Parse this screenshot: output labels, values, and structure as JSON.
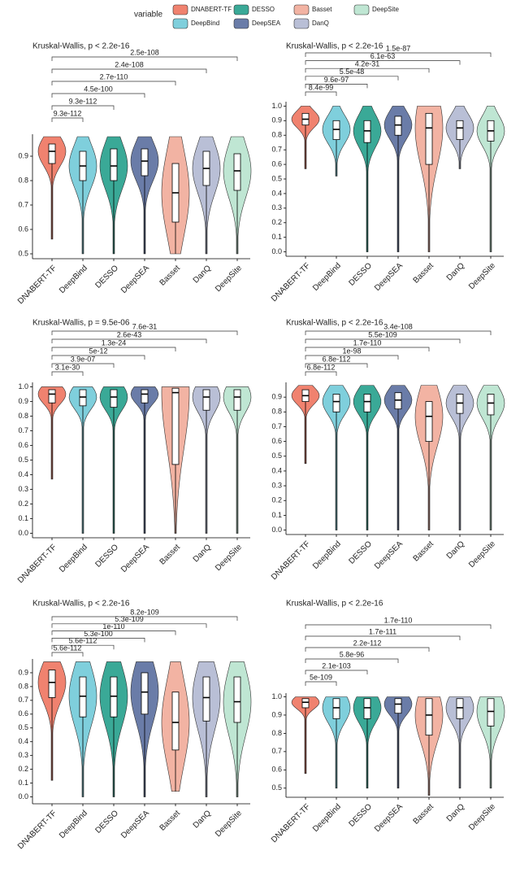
{
  "legend": {
    "title": "variable",
    "entries": [
      {
        "name": "DNABERT-TF",
        "color": "#f0826f"
      },
      {
        "name": "DeepBind",
        "color": "#7fcfdc"
      },
      {
        "name": "DESSO",
        "color": "#3aa997"
      },
      {
        "name": "DeepSEA",
        "color": "#6a7ca8"
      },
      {
        "name": "Basset",
        "color": "#f2b3a3"
      },
      {
        "name": "DanQ",
        "color": "#b9bfd6"
      },
      {
        "name": "DeepSite",
        "color": "#bfe6d3"
      }
    ]
  },
  "chart_data": [
    {
      "type": "violin",
      "title": "Kruskal-Wallis, p < 2.2e-16",
      "categories": [
        "DNABERT-TF",
        "DeepBind",
        "DESSO",
        "DeepSEA",
        "Basset",
        "DanQ",
        "DeepSite"
      ],
      "stats": {
        "min": [
          0.56,
          0.5,
          0.5,
          0.5,
          0.5,
          0.5,
          0.5
        ],
        "q1": [
          0.87,
          0.8,
          0.8,
          0.82,
          0.63,
          0.78,
          0.76
        ],
        "median": [
          0.92,
          0.86,
          0.86,
          0.88,
          0.75,
          0.85,
          0.84
        ],
        "q3": [
          0.95,
          0.92,
          0.93,
          0.93,
          0.87,
          0.92,
          0.91
        ],
        "max": [
          0.98,
          0.98,
          0.98,
          0.98,
          0.98,
          0.98,
          0.98
        ]
      },
      "p_values": [
        "9.3e-112",
        "9.3e-112",
        "4.5e-100",
        "2.7e-110",
        "2.4e-108",
        "2.5e-108"
      ],
      "ylim": [
        0.48,
        0.99
      ],
      "yticks": [
        0.5,
        0.6,
        0.7,
        0.8,
        0.9
      ]
    },
    {
      "type": "violin",
      "title": "Kruskal-Wallis, p < 2.2e-16",
      "categories": [
        "DNABERT-TF",
        "DeepBind",
        "DESSO",
        "DeepSEA",
        "Basset",
        "DanQ",
        "DeepSite"
      ],
      "stats": {
        "min": [
          0.57,
          0.52,
          0,
          0,
          0,
          0.57,
          0
        ],
        "q1": [
          0.87,
          0.77,
          0.75,
          0.8,
          0.6,
          0.77,
          0.76
        ],
        "median": [
          0.91,
          0.84,
          0.83,
          0.87,
          0.85,
          0.85,
          0.83
        ],
        "q3": [
          0.95,
          0.9,
          0.9,
          0.93,
          0.95,
          0.9,
          0.9
        ],
        "max": [
          1,
          1,
          1,
          1,
          1,
          1,
          1
        ]
      },
      "p_values": [
        "8.4e-99",
        "9.6e-97",
        "5.5e-48",
        "4.2e-31",
        "6.1e-63",
        "1.5e-87"
      ],
      "ylim": [
        -0.03,
        1.03
      ],
      "yticks": [
        {
          "value": 0,
          "label": "0.0"
        },
        0.1,
        0.2,
        0.3,
        0.4,
        0.5,
        0.6,
        0.7,
        0.8,
        0.9,
        {
          "value": 1,
          "label": "1.0"
        }
      ]
    },
    {
      "type": "violin",
      "title": "Kruskal-Wallis, p = 9.5e-06",
      "categories": [
        "DNABERT-TF",
        "DeepBind",
        "DESSO",
        "DeepSEA",
        "Basset",
        "DanQ",
        "DeepSite"
      ],
      "stats": {
        "min": [
          0.37,
          0,
          0,
          0,
          0,
          0,
          0
        ],
        "q1": [
          0.89,
          0.87,
          0.86,
          0.89,
          0.47,
          0.84,
          0.84
        ],
        "median": [
          0.95,
          0.93,
          0.93,
          0.95,
          0.96,
          0.93,
          0.93
        ],
        "q3": [
          0.98,
          0.98,
          0.98,
          0.98,
          0.99,
          0.98,
          0.98
        ],
        "max": [
          1,
          1,
          1,
          1,
          1,
          1,
          1
        ]
      },
      "p_values": [
        "3.1e-30",
        "3.9e-07",
        "5e-12",
        "1.3e-24",
        "2.6e-43",
        "7.6e-31"
      ],
      "ylim": [
        -0.03,
        1.03
      ],
      "yticks": [
        {
          "value": 0,
          "label": "0.0"
        },
        0.1,
        0.2,
        0.3,
        0.4,
        0.5,
        0.6,
        0.7,
        0.8,
        0.9,
        {
          "value": 1,
          "label": "1.0"
        }
      ]
    },
    {
      "type": "violin",
      "title": "Kruskal-Wallis, p < 2.2e-16",
      "categories": [
        "DNABERT-TF",
        "DeepBind",
        "DESSO",
        "DeepSEA",
        "Basset",
        "DanQ",
        "DeepSite"
      ],
      "stats": {
        "min": [
          0.45,
          0,
          0,
          0,
          0,
          0,
          0
        ],
        "q1": [
          0.87,
          0.8,
          0.8,
          0.82,
          0.6,
          0.79,
          0.78
        ],
        "median": [
          0.91,
          0.87,
          0.87,
          0.88,
          0.77,
          0.86,
          0.86
        ],
        "q3": [
          0.95,
          0.92,
          0.92,
          0.93,
          0.87,
          0.92,
          0.92
        ],
        "max": [
          0.98,
          0.98,
          0.98,
          0.98,
          0.98,
          0.98,
          0.98
        ]
      },
      "p_values": [
        "6.8e-112",
        "6.8e-112",
        "1e-98",
        "1.7e-110",
        "5.5e-109",
        "3.4e-108"
      ],
      "ylim": [
        -0.03,
        1.0
      ],
      "yticks": [
        {
          "value": 0,
          "label": "0.0"
        },
        0.1,
        0.2,
        0.3,
        0.4,
        0.5,
        0.6,
        0.7,
        0.8,
        0.9
      ]
    },
    {
      "type": "violin",
      "title": "Kruskal-Wallis, p < 2.2e-16",
      "categories": [
        "DNABERT-TF",
        "DeepBind",
        "DESSO",
        "DeepSEA",
        "Basset",
        "DanQ",
        "DeepSite"
      ],
      "stats": {
        "min": [
          0.12,
          0,
          0,
          0,
          0.04,
          0,
          0
        ],
        "q1": [
          0.72,
          0.58,
          0.58,
          0.6,
          0.34,
          0.55,
          0.54
        ],
        "median": [
          0.83,
          0.73,
          0.73,
          0.76,
          0.54,
          0.72,
          0.69
        ],
        "q3": [
          0.92,
          0.87,
          0.87,
          0.9,
          0.76,
          0.87,
          0.87
        ],
        "max": [
          0.98,
          0.98,
          0.98,
          0.98,
          0.98,
          0.98,
          0.98
        ]
      },
      "p_values": [
        "5.6e-112",
        "5.6e-112",
        "5.3e-100",
        "1e-110",
        "5.3e-109",
        "8.2e-109"
      ],
      "ylim": [
        -0.05,
        1.0
      ],
      "yticks": [
        {
          "value": 0,
          "label": "0.0"
        },
        0.1,
        0.2,
        0.3,
        0.4,
        0.5,
        0.6,
        0.7,
        0.8,
        0.9
      ]
    },
    {
      "type": "violin",
      "title": "Kruskal-Wallis, p < 2.2e-16",
      "categories": [
        "DNABERT-TF",
        "DeepBind",
        "DESSO",
        "DeepSEA",
        "Basset",
        "DanQ",
        "DeepSite"
      ],
      "stats": {
        "min": [
          0.58,
          0.5,
          0.5,
          0.5,
          0.46,
          0.5,
          0.5
        ],
        "q1": [
          0.94,
          0.88,
          0.88,
          0.91,
          0.79,
          0.88,
          0.84
        ],
        "median": [
          0.97,
          0.94,
          0.94,
          0.96,
          0.9,
          0.94,
          0.92
        ],
        "q3": [
          0.99,
          0.99,
          0.99,
          0.99,
          0.99,
          0.99,
          0.99
        ],
        "max": [
          1,
          1,
          1,
          1,
          1,
          1,
          1
        ]
      },
      "p_values": [
        "5e-109",
        "2.1e-103",
        "5.8e-96",
        "2.2e-112",
        "1.7e-111",
        "1.7e-110"
      ],
      "ylim": [
        0.45,
        1.02
      ],
      "yticks": [
        0.5,
        0.6,
        0.7,
        0.8,
        0.9,
        {
          "value": 1,
          "label": "1.0"
        }
      ]
    }
  ]
}
